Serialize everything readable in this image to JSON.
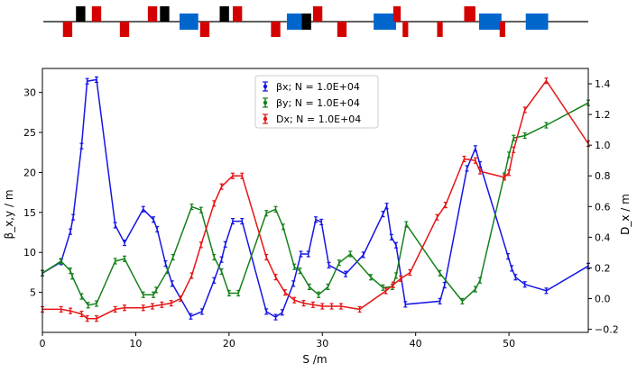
{
  "lattice": {
    "elements": [
      {
        "s": 2.2,
        "len": 1.0,
        "side": "below",
        "color": "#d40000"
      },
      {
        "s": 3.6,
        "len": 1.0,
        "side": "above",
        "color": "#000000"
      },
      {
        "s": 5.3,
        "len": 1.0,
        "side": "above",
        "color": "#d40000"
      },
      {
        "s": 8.3,
        "len": 1.0,
        "side": "below",
        "color": "#d40000"
      },
      {
        "s": 11.3,
        "len": 1.0,
        "side": "above",
        "color": "#d40000"
      },
      {
        "s": 12.6,
        "len": 1.0,
        "side": "above",
        "color": "#000000"
      },
      {
        "s": 14.7,
        "len": 2.0,
        "side": "both",
        "color": "#0066cc"
      },
      {
        "s": 16.9,
        "len": 1.0,
        "side": "below",
        "color": "#d40000"
      },
      {
        "s": 19.0,
        "len": 1.0,
        "side": "above",
        "color": "#000000"
      },
      {
        "s": 20.4,
        "len": 1.0,
        "side": "above",
        "color": "#d40000"
      },
      {
        "s": 24.5,
        "len": 1.0,
        "side": "below",
        "color": "#d40000"
      },
      {
        "s": 26.2,
        "len": 2.0,
        "side": "both",
        "color": "#0066cc"
      },
      {
        "s": 27.8,
        "len": 1.0,
        "side": "both",
        "color": "#000000"
      },
      {
        "s": 29.0,
        "len": 1.0,
        "side": "above",
        "color": "#d40000"
      },
      {
        "s": 31.6,
        "len": 1.0,
        "side": "below",
        "color": "#d40000"
      },
      {
        "s": 35.5,
        "len": 2.4,
        "side": "both",
        "color": "#0066cc"
      },
      {
        "s": 37.6,
        "len": 0.8,
        "side": "above",
        "color": "#d40000"
      },
      {
        "s": 38.6,
        "len": 0.6,
        "side": "below",
        "color": "#d40000"
      },
      {
        "s": 42.3,
        "len": 0.6,
        "side": "below",
        "color": "#d40000"
      },
      {
        "s": 45.2,
        "len": 1.2,
        "side": "above",
        "color": "#d40000"
      },
      {
        "s": 46.8,
        "len": 2.4,
        "side": "both",
        "color": "#0066cc"
      },
      {
        "s": 49.0,
        "len": 0.6,
        "side": "below",
        "color": "#d40000"
      },
      {
        "s": 51.8,
        "len": 2.4,
        "side": "both",
        "color": "#0066cc"
      }
    ]
  },
  "chart_data": {
    "type": "line",
    "xlabel": "S /m",
    "ylabel_left": "β_x,y / m",
    "ylabel_right": "D_x / m",
    "xlim": [
      0,
      58.5
    ],
    "ylim_left": [
      0,
      33
    ],
    "ylim_right": [
      -0.22,
      1.5
    ],
    "xticks": [
      "0",
      "10",
      "20",
      "30",
      "40",
      "50"
    ],
    "yticks_left": [
      "5",
      "10",
      "15",
      "20",
      "25",
      "30"
    ],
    "yticks_right": [
      "−0.2",
      "0.0",
      "0.2",
      "0.4",
      "0.6",
      "0.8",
      "1.0",
      "1.2",
      "1.4"
    ],
    "grid": false,
    "legend_position": "upper-center",
    "series": [
      {
        "name": "βx; N = 1.0E+04",
        "axis": "left",
        "color": "#1515e6",
        "x": [
          0,
          2,
          3,
          3.3,
          4.2,
          4.8,
          5.8,
          7.8,
          8.8,
          10.8,
          11.9,
          12.3,
          13.2,
          13.9,
          15.9,
          17.1,
          18.4,
          19.2,
          19.6,
          20.4,
          21.4,
          24.0,
          25.0,
          25.7,
          26.9,
          27.7,
          28.5,
          29.3,
          29.9,
          30.7,
          32.5,
          34.4,
          36.5,
          36.9,
          37.4,
          37.9,
          38.9,
          42.6,
          43.1,
          45.5,
          46.4,
          46.9,
          49.9,
          50.3,
          50.7,
          51.7,
          54.0,
          58.5
        ],
        "y": [
          7.4,
          8.8,
          12.6,
          14.4,
          23.3,
          31.4,
          31.6,
          13.4,
          11.2,
          15.4,
          14.1,
          12.9,
          8.6,
          6.1,
          2.0,
          2.6,
          6.5,
          9.1,
          11.0,
          13.9,
          13.9,
          2.6,
          1.9,
          2.5,
          6.1,
          9.8,
          9.8,
          14.1,
          13.8,
          8.4,
          7.3,
          9.7,
          14.8,
          15.8,
          11.9,
          10.9,
          3.5,
          3.9,
          5.9,
          20.5,
          23.0,
          21.0,
          9.5,
          8.0,
          6.9,
          6.0,
          5.2,
          8.3
        ]
      },
      {
        "name": "βy; N = 1.0E+04",
        "axis": "left",
        "color": "#15801a",
        "x": [
          0,
          2,
          3,
          3.2,
          4.2,
          4.9,
          5.8,
          7.8,
          8.8,
          10.8,
          11.9,
          12.2,
          13.4,
          14.0,
          16.0,
          17.0,
          18.4,
          19.2,
          20.0,
          21.0,
          24.0,
          25.0,
          25.8,
          27.0,
          27.6,
          28.6,
          29.6,
          30.6,
          31.8,
          33.0,
          35.2,
          36.5,
          37.5,
          37.9,
          39.0,
          42.6,
          45.0,
          46.4,
          46.9,
          49.5,
          50.0,
          50.5,
          51.7,
          54.0,
          58.5
        ],
        "y": [
          7.4,
          8.9,
          7.7,
          7.0,
          4.5,
          3.4,
          3.6,
          8.9,
          9.2,
          4.7,
          4.7,
          5.3,
          7.7,
          9.4,
          15.7,
          15.3,
          9.4,
          7.6,
          4.9,
          4.9,
          14.9,
          15.4,
          13.2,
          8.2,
          7.7,
          5.7,
          4.7,
          5.7,
          8.7,
          9.8,
          6.9,
          5.6,
          5.7,
          7.1,
          13.5,
          7.4,
          3.9,
          5.4,
          6.5,
          19.6,
          22.2,
          24.3,
          24.6,
          25.9,
          28.7
        ]
      },
      {
        "name": "Dx; N = 1.0E+04",
        "axis": "right",
        "color": "#e61515",
        "x": [
          0,
          2,
          3,
          4.2,
          4.8,
          5.8,
          7.8,
          8.8,
          10.8,
          11.8,
          12.8,
          13.8,
          14.8,
          16.0,
          17.0,
          18.4,
          19.2,
          20.4,
          21.4,
          24.0,
          25.0,
          26.0,
          27.0,
          28.0,
          29.0,
          30.0,
          31.0,
          32.0,
          34.0,
          36.8,
          37.6,
          38.4,
          39.4,
          42.3,
          43.2,
          45.2,
          46.4,
          46.9,
          49.5,
          50.0,
          50.5,
          51.7,
          54.0,
          58.5
        ],
        "y": [
          -0.07,
          -0.07,
          -0.08,
          -0.1,
          -0.13,
          -0.13,
          -0.07,
          -0.06,
          -0.06,
          -0.05,
          -0.04,
          -0.03,
          0.0,
          0.15,
          0.35,
          0.62,
          0.73,
          0.8,
          0.8,
          0.27,
          0.14,
          0.04,
          -0.01,
          -0.03,
          -0.04,
          -0.05,
          -0.05,
          -0.05,
          -0.07,
          0.05,
          0.09,
          0.13,
          0.17,
          0.53,
          0.61,
          0.91,
          0.9,
          0.83,
          0.79,
          0.82,
          0.97,
          1.23,
          1.42,
          1.01
        ]
      }
    ]
  }
}
